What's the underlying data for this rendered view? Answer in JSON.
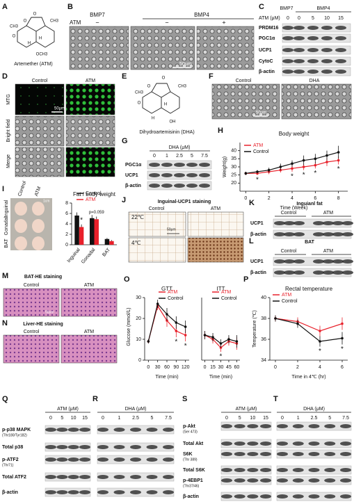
{
  "A": {
    "label": "A",
    "caption": "Artemether (ATM)",
    "atoms": [
      "CH3",
      "O",
      "O",
      "O",
      "H",
      "H",
      "CH3",
      "OCH3"
    ]
  },
  "B": {
    "label": "B",
    "groups": [
      "BMP7",
      "BMP4"
    ],
    "treatment": "ATM",
    "signs": [
      "−",
      "−",
      "+"
    ],
    "scale": "50μm"
  },
  "C": {
    "label": "C",
    "groups": [
      "BMP7",
      "BMP4"
    ],
    "lane_title": "ATM (μM)",
    "lanes": [
      "0",
      "0",
      "5",
      "10",
      "15"
    ],
    "rows": [
      {
        "name": "PRDM16"
      },
      {
        "name": "PGC1α"
      },
      {
        "name": "UCP1"
      },
      {
        "name": "CytoC"
      },
      {
        "name": "β-actin"
      }
    ]
  },
  "D": {
    "label": "D",
    "columns": [
      "Control",
      "ATM"
    ],
    "rows": [
      "MTG",
      "Bright field",
      "Merge"
    ],
    "scale": "50μm"
  },
  "E": {
    "label": "E",
    "caption": "Dihydroartemisinin (DHA)",
    "atoms": [
      "CH3",
      "O",
      "O",
      "O",
      "H",
      "H",
      "CH3",
      "OH"
    ]
  },
  "F": {
    "label": "F",
    "columns": [
      "Control",
      "DHA"
    ],
    "scale": "50μm"
  },
  "G": {
    "label": "G",
    "lane_title": "DHA (μM)",
    "lanes": [
      "0",
      "1",
      "2.5",
      "5",
      "7.5"
    ],
    "rows": [
      {
        "name": "PGC1α"
      },
      {
        "name": "UCP1"
      },
      {
        "name": "β-actin"
      }
    ]
  },
  "H": {
    "label": "H",
    "chart": {
      "type": "line",
      "title": "Body weight",
      "x_label": "Time (Week)",
      "y_label": "Weight(g)",
      "x": [
        0,
        1,
        2,
        3,
        4,
        5,
        6,
        7,
        8
      ],
      "xlim": [
        -0.5,
        8.8
      ],
      "xticks": [
        0,
        2,
        4,
        6,
        8
      ],
      "ylim": [
        15,
        45
      ],
      "yticks": [
        20,
        25,
        30,
        35,
        40
      ],
      "series": [
        {
          "name": "ATM",
          "color": "#e8202a",
          "values": [
            26,
            26,
            27,
            28,
            29,
            30,
            31,
            33,
            34
          ],
          "errors": [
            1,
            1,
            1.5,
            1.5,
            2,
            2,
            2,
            2.5,
            2.5
          ]
        },
        {
          "name": "Control",
          "color": "#111111",
          "values": [
            26,
            27,
            28,
            30,
            32,
            34,
            35,
            37,
            39
          ],
          "errors": [
            1,
            1,
            1.5,
            2,
            2,
            3,
            3,
            3,
            4
          ]
        }
      ],
      "annotations": [
        {
          "text": "*",
          "x": 1
        },
        {
          "text": "*",
          "x": 4
        },
        {
          "text": "*",
          "x": 5
        },
        {
          "text": "*",
          "x": 6
        },
        {
          "text": "*",
          "x": 8
        }
      ]
    }
  },
  "I": {
    "label": "I",
    "photo_columns": [
      "Control",
      "ATM"
    ],
    "photo_rows": [
      "Inguinal",
      "Gonadal",
      "BAT"
    ],
    "scale": "1cm",
    "chart": {
      "type": "bar",
      "title": "Fat / body weight",
      "categories": [
        "Inguinal",
        "Gonadal",
        "BAT"
      ],
      "ylim": [
        0,
        8
      ],
      "yticks": [
        0,
        2,
        4,
        6,
        8
      ],
      "series": [
        {
          "name": "Control",
          "color": "#111111",
          "values": [
            5.6,
            5.1,
            1.1
          ],
          "errors": [
            0.6,
            0.6,
            0.2
          ]
        },
        {
          "name": "ATM",
          "color": "#e8202a",
          "values": [
            3.4,
            4.9,
            0.7
          ],
          "errors": [
            0.5,
            0.5,
            0.2
          ]
        }
      ],
      "annotations": [
        {
          "text": "*",
          "category": 0
        },
        {
          "text": "p=0.059",
          "category": 1
        }
      ]
    }
  },
  "J": {
    "label": "J",
    "title": "Inguinal-UCP1 staining",
    "columns": [
      "Control",
      "ATM"
    ],
    "rows": [
      "22℃",
      "4℃"
    ],
    "scale": "50μm"
  },
  "K": {
    "label": "K",
    "title": "Inguianl fat",
    "groups": [
      "Control",
      "ATM"
    ],
    "rows": [
      {
        "name": "UCP1"
      },
      {
        "name": "β-actin"
      }
    ]
  },
  "L": {
    "label": "L",
    "title": "BAT",
    "groups": [
      "Control",
      "ATM"
    ],
    "rows": [
      {
        "name": "UCP1"
      },
      {
        "name": "β-actin"
      }
    ]
  },
  "M": {
    "label": "M",
    "title": "BAT-HE staining",
    "columns": [
      "Control",
      "ATM"
    ],
    "scale": "50μm"
  },
  "N": {
    "label": "N",
    "title": "Liver-HE staining",
    "columns": [
      "Control",
      "ATM"
    ]
  },
  "O": {
    "label": "O",
    "y_label": "Glucose (mmol/L)",
    "charts": [
      {
        "type": "line",
        "title": "GTT",
        "x_label": "Time (min)",
        "x": [
          0,
          30,
          60,
          90,
          120
        ],
        "xlim": [
          -12,
          132
        ],
        "xticks": [
          0,
          30,
          60,
          90,
          120
        ],
        "ylim": [
          0,
          30
        ],
        "yticks": [
          0,
          10,
          20,
          30
        ],
        "series": [
          {
            "name": "ATM",
            "color": "#e8202a",
            "values": [
              9,
              26,
              19,
              14,
              12
            ],
            "errors": [
              1,
              2,
              3,
              3,
              3
            ]
          },
          {
            "name": "Control",
            "color": "#111111",
            "values": [
              9,
              27,
              22,
              18,
              16
            ],
            "errors": [
              1,
              2,
              3,
              3,
              3
            ]
          }
        ],
        "annotations": [
          {
            "text": "*",
            "x": 90
          },
          {
            "text": "*",
            "x": 120
          }
        ]
      },
      {
        "type": "line",
        "title": "ITT",
        "x_label": "Time (min)",
        "x": [
          0,
          15,
          30,
          45,
          60
        ],
        "xlim": [
          -6,
          66
        ],
        "xticks": [
          0,
          15,
          30,
          45,
          60
        ],
        "ylim": [
          0,
          30
        ],
        "series": [
          {
            "name": "ATM",
            "color": "#e8202a",
            "values": [
              12,
              10,
              6,
              9,
              8
            ],
            "errors": [
              2,
              2,
              2,
              2,
              3
            ]
          },
          {
            "name": "Control",
            "color": "#111111",
            "values": [
              12,
              11,
              8,
              10,
              9
            ],
            "errors": [
              2,
              2,
              2,
              2,
              3
            ]
          }
        ],
        "annotations": [
          {
            "text": "*",
            "x": 30
          }
        ]
      }
    ]
  },
  "P": {
    "label": "P",
    "chart": {
      "type": "line",
      "title": "Rectal temperature",
      "x_label": "Time in 4℃ (hr)",
      "y_label": "Temperature (℃)",
      "x": [
        0,
        2,
        4,
        6
      ],
      "xlim": [
        -0.5,
        6.5
      ],
      "xticks": [
        0,
        2,
        4,
        6
      ],
      "ylim": [
        34,
        40
      ],
      "yticks": [
        34,
        36,
        38,
        40
      ],
      "series": [
        {
          "name": "ATM",
          "color": "#e8202a",
          "values": [
            38,
            37.7,
            36.8,
            37.5
          ],
          "errors": [
            0.3,
            0.4,
            0.5,
            0.6
          ]
        },
        {
          "name": "Control",
          "color": "#111111",
          "values": [
            38,
            37.5,
            35.8,
            36.1
          ],
          "errors": [
            0.3,
            0.4,
            0.5,
            0.6
          ]
        }
      ],
      "annotations": [
        {
          "text": "*",
          "x": 4
        },
        {
          "text": "*",
          "x": 6
        }
      ]
    }
  },
  "Q": {
    "label": "Q",
    "lane_title": "ATM (μM)",
    "lanes": [
      "0",
      "5",
      "10",
      "15"
    ],
    "rows": [
      {
        "name": "p-p38 MAPK",
        "detail": "(Thr180/Tyr182)"
      },
      {
        "name": "Total p38"
      },
      {
        "name": "p-ATF2",
        "detail": "(Thr71)"
      },
      {
        "name": "Total ATF2"
      },
      {
        "name": "β-actin"
      }
    ]
  },
  "R": {
    "label": "R",
    "lane_title": "DHA (μM)",
    "lanes": [
      "0",
      "1",
      "2.5",
      "5",
      "7.5"
    ]
  },
  "S": {
    "label": "S",
    "lane_title": "ATM (μM)",
    "lanes": [
      "0",
      "5",
      "10",
      "15"
    ],
    "rows": [
      {
        "name": "p-Akt",
        "detail": "(Ser 473)"
      },
      {
        "name": "Total Akt"
      },
      {
        "name": "S6K",
        "detail": "(Thr 389)"
      },
      {
        "name": "Total S6K"
      },
      {
        "name": "p-4EBP1",
        "detail": "(Thr37/46)"
      },
      {
        "name": "β-actin"
      }
    ]
  },
  "T": {
    "label": "T",
    "lane_title": "DHA (μM)",
    "lanes": [
      "0",
      "1",
      "2.5",
      "5",
      "7.5"
    ]
  }
}
